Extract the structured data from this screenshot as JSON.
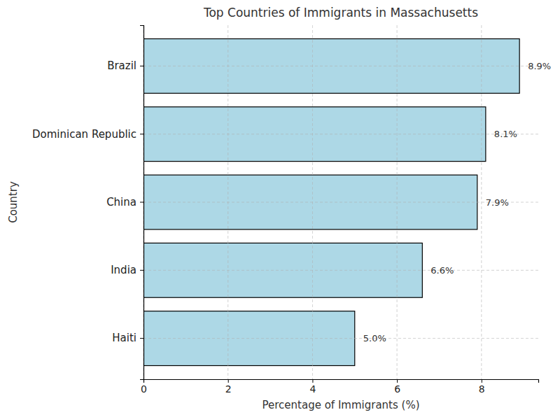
{
  "chart_data": {
    "type": "bar",
    "orientation": "horizontal",
    "title": "Top Countries of Immigrants in Massachusetts",
    "xlabel": "Percentage of Immigrants (%)",
    "ylabel": "Country",
    "categories": [
      "Brazil",
      "Dominican Republic",
      "China",
      "India",
      "Haiti"
    ],
    "values": [
      8.9,
      8.1,
      7.9,
      6.6,
      5.0
    ],
    "value_labels": [
      "8.9%",
      "8.1%",
      "7.9%",
      "6.6%",
      "5.0%"
    ],
    "color": "#add8e6",
    "xlim": [
      0,
      9.345
    ],
    "xticks": [
      0,
      2,
      4,
      6,
      8
    ],
    "grid": true,
    "data_labels": true
  }
}
